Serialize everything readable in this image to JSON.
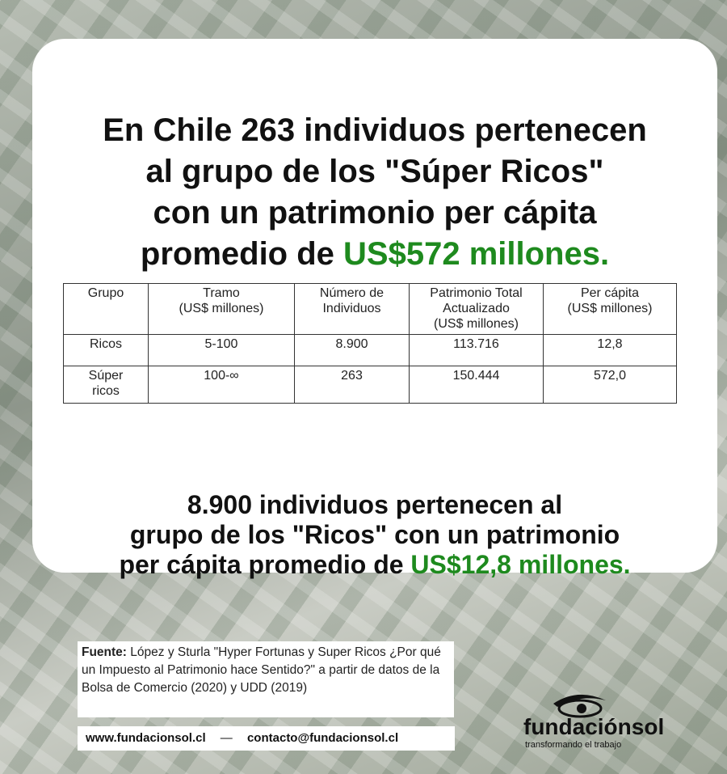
{
  "headline": {
    "lines": [
      "En Chile 263 individuos pertenecen",
      "al grupo de los \"Súper Ricos\"",
      "con un patrimonio per cápita",
      "promedio de"
    ],
    "highlight": "US$572 millones."
  },
  "table": {
    "header": [
      "Grupo",
      "Tramo\n(US$ millones)",
      "Número de\nIndividuos",
      "Patrimonio Total\nActualizado\n(US$ millones)",
      "Per cápita\n(US$ millones)"
    ],
    "rows": [
      [
        "Ricos",
        "5-100",
        "8.900",
        "113.716",
        "12,8"
      ],
      [
        "Súper\nricos",
        "100-∞",
        "263",
        "150.444",
        "572,0"
      ]
    ]
  },
  "subtext": {
    "lines": [
      "8.900 individuos pertenecen al",
      "grupo de los \"Ricos\" con un patrimonio",
      "per cápita promedio de"
    ],
    "highlight": "US$12,8 millones."
  },
  "source": {
    "label": "Fuente:",
    "text": "López y Sturla \"Hyper Fortunas y Super Ricos ¿Por qué un Impuesto al Patrimonio hace Sentido?\" a partir de datos de la Bolsa de Comercio (2020) y UDD (2019)"
  },
  "links": {
    "website": "www.fundacionsol.cl",
    "separator": "—",
    "email": "contacto@fundacionsol.cl"
  },
  "logo": {
    "name": "fundaciónsol",
    "tagline": "transformando el trabajo"
  }
}
